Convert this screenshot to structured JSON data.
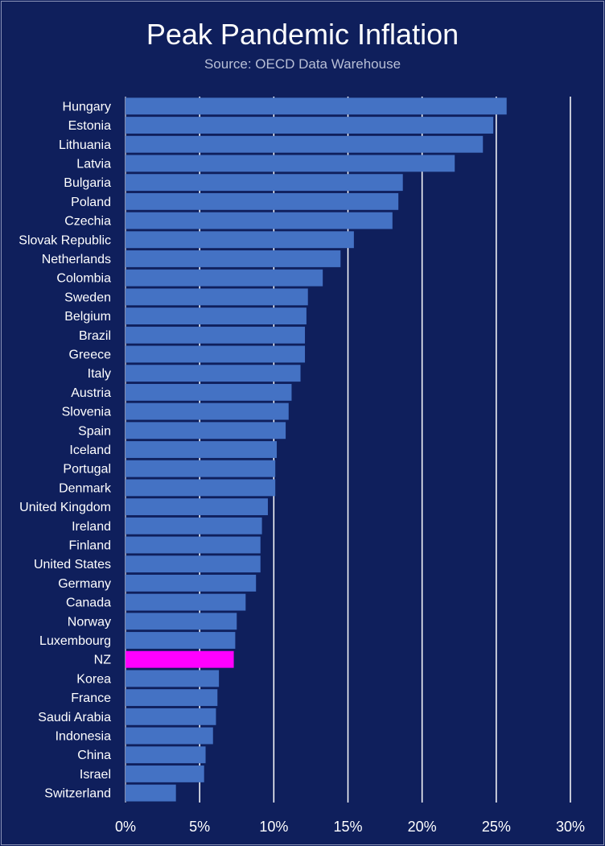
{
  "chart_data": {
    "type": "bar",
    "orientation": "horizontal",
    "title": "Peak Pandemic Inflation",
    "subtitle": "Source: OECD Data Warehouse",
    "xlabel": "",
    "ylabel": "",
    "xlim": [
      0,
      30
    ],
    "x_ticks": [
      "0%",
      "5%",
      "10%",
      "15%",
      "20%",
      "25%",
      "30%"
    ],
    "grid": "vertical",
    "bar_color": "#4472c4",
    "highlight_color": "#ff00ff",
    "highlight_category": "NZ",
    "background": "#0f1f5c",
    "categories": [
      "Hungary",
      "Estonia",
      "Lithuania",
      "Latvia",
      "Bulgaria",
      "Poland",
      "Czechia",
      "Slovak Republic",
      "Netherlands",
      "Colombia",
      "Sweden",
      "Belgium",
      "Brazil",
      "Greece",
      "Italy",
      "Austria",
      "Slovenia",
      "Spain",
      "Iceland",
      "Portugal",
      "Denmark",
      "United Kingdom",
      "Ireland",
      "Finland",
      "United States",
      "Germany",
      "Canada",
      "Norway",
      "Luxembourg",
      "NZ",
      "Korea",
      "France",
      "Saudi Arabia",
      "Indonesia",
      "China",
      "Israel",
      "Switzerland"
    ],
    "values": [
      25.7,
      24.8,
      24.1,
      22.2,
      18.7,
      18.4,
      18.0,
      15.4,
      14.5,
      13.3,
      12.3,
      12.2,
      12.1,
      12.1,
      11.8,
      11.2,
      11.0,
      10.8,
      10.2,
      10.1,
      10.1,
      9.6,
      9.2,
      9.1,
      9.1,
      8.8,
      8.1,
      7.5,
      7.4,
      7.3,
      6.3,
      6.2,
      6.1,
      5.9,
      5.4,
      5.3,
      3.4
    ]
  }
}
